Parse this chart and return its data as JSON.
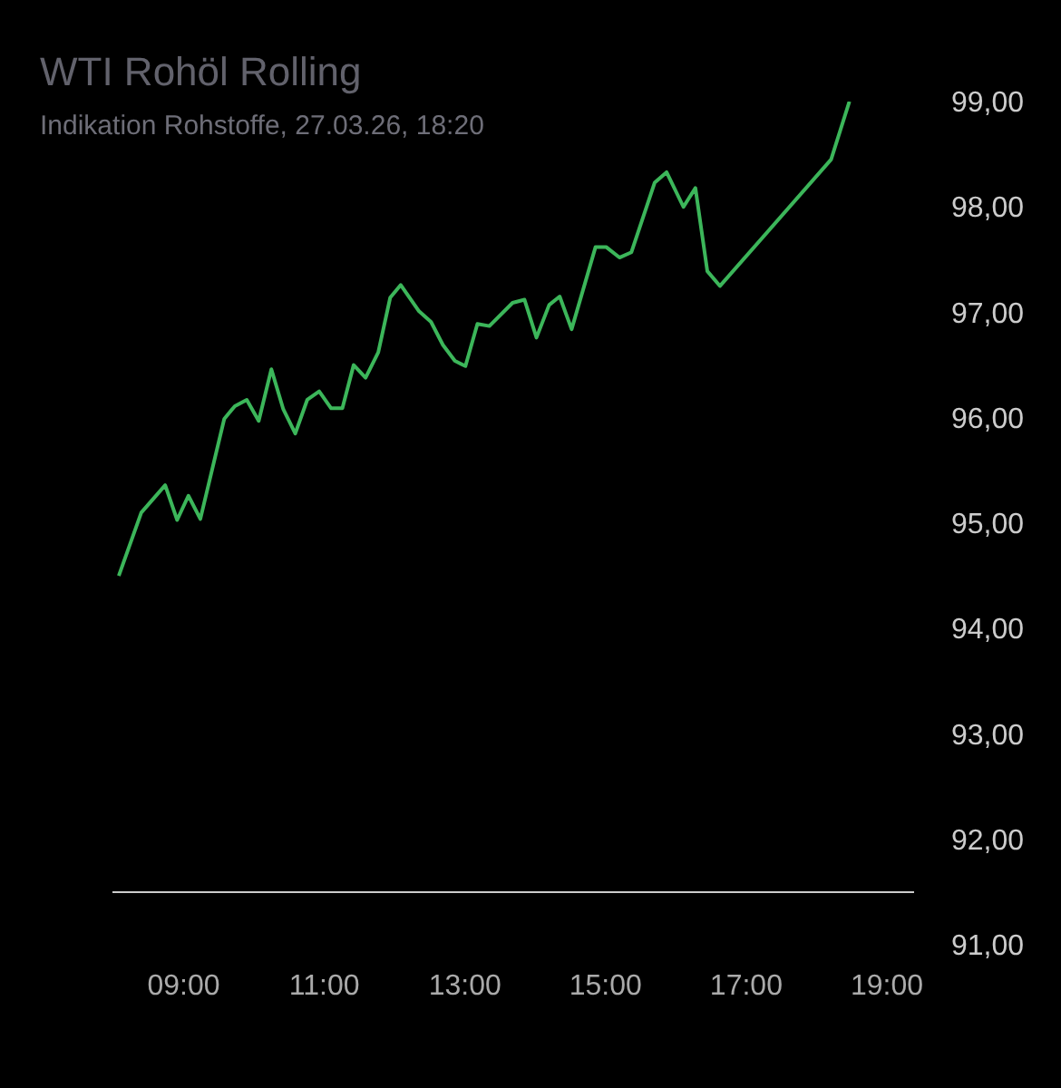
{
  "chart_data": {
    "type": "line",
    "title": "WTI Rohöl Rolling",
    "subtitle": "Indikation Rohstoffe, 27.03.26, 18:20",
    "x": [
      8.09,
      8.41,
      8.75,
      8.92,
      9.08,
      9.25,
      9.59,
      9.74,
      9.91,
      10.08,
      10.26,
      10.43,
      10.6,
      10.77,
      10.94,
      11.11,
      11.27,
      11.43,
      11.6,
      11.78,
      11.95,
      12.1,
      12.36,
      12.53,
      12.7,
      12.87,
      13.02,
      13.19,
      13.36,
      13.69,
      13.86,
      14.03,
      14.21,
      14.36,
      14.53,
      14.87,
      15.02,
      15.21,
      15.38,
      15.71,
      15.88,
      16.12,
      16.29,
      16.46,
      16.64,
      18.22,
      18.48
    ],
    "series": [
      {
        "color": "#3cb65a",
        "values": [
          94.5,
          95.1,
          95.36,
          95.03,
          95.26,
          95.04,
          95.99,
          96.11,
          96.17,
          95.97,
          96.46,
          96.08,
          95.85,
          96.17,
          96.25,
          96.09,
          96.09,
          96.5,
          96.38,
          96.62,
          97.14,
          97.26,
          97.01,
          96.91,
          96.69,
          96.54,
          96.49,
          96.89,
          96.87,
          97.09,
          97.12,
          96.76,
          97.07,
          97.15,
          96.84,
          97.62,
          97.62,
          97.52,
          97.57,
          98.23,
          98.33,
          98.0,
          98.18,
          97.39,
          97.25,
          98.45,
          99.0
        ]
      }
    ],
    "xlim": [
      8,
      19.4
    ],
    "ylim": [
      91,
      99
    ],
    "xticks": [
      {
        "value": 9,
        "label": "09:00"
      },
      {
        "value": 11,
        "label": "11:00"
      },
      {
        "value": 13,
        "label": "13:00"
      },
      {
        "value": 15,
        "label": "15:00"
      },
      {
        "value": 17,
        "label": "17:00"
      },
      {
        "value": 19,
        "label": "19:00"
      }
    ],
    "yticks": [
      {
        "value": 91,
        "label": "91,00"
      },
      {
        "value": 92,
        "label": "92,00"
      },
      {
        "value": 93,
        "label": "93,00"
      },
      {
        "value": 94,
        "label": "94,00"
      },
      {
        "value": 95,
        "label": "95,00"
      },
      {
        "value": 96,
        "label": "96,00"
      },
      {
        "value": 97,
        "label": "97,00"
      },
      {
        "value": 98,
        "label": "98,00"
      },
      {
        "value": 99,
        "label": "99,00"
      }
    ],
    "ref_lines": [
      {
        "axis": "y",
        "value": 91.5,
        "color": "#cccccc"
      }
    ]
  }
}
